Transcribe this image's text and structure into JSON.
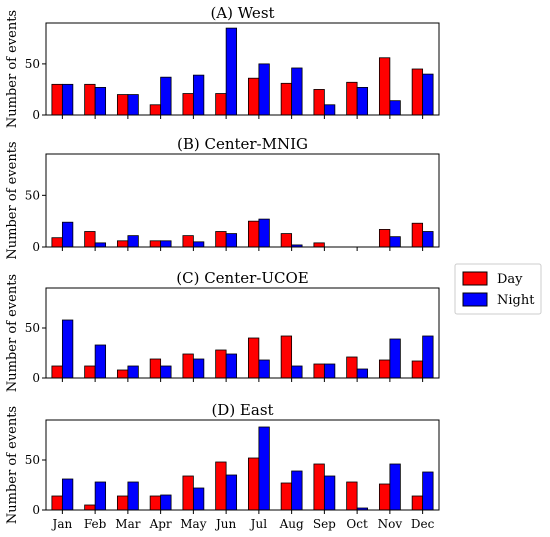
{
  "legend": {
    "entries": [
      {
        "label": "Day",
        "color": "#ff0000"
      },
      {
        "label": "Night",
        "color": "#0000ff"
      }
    ]
  },
  "chart_data": [
    {
      "type": "bar",
      "title": "(A) West",
      "ylabel": "Number of events",
      "ylim": [
        0,
        90
      ],
      "yticks": [
        0,
        50
      ],
      "categories": [
        "Jan",
        "Feb",
        "Mar",
        "Apr",
        "May",
        "Jun",
        "Jul",
        "Aug",
        "Sep",
        "Oct",
        "Nov",
        "Dec"
      ],
      "series": [
        {
          "name": "Day",
          "color": "#ff0000",
          "values": [
            30,
            30,
            20,
            10,
            21,
            21,
            36,
            31,
            25,
            32,
            56,
            45
          ]
        },
        {
          "name": "Night",
          "color": "#0000ff",
          "values": [
            30,
            27,
            20,
            37,
            39,
            85,
            50,
            46,
            10,
            27,
            14,
            40
          ]
        }
      ]
    },
    {
      "type": "bar",
      "title": "(B) Center-MNIG",
      "ylabel": "Number of events",
      "ylim": [
        0,
        90
      ],
      "yticks": [
        0,
        50
      ],
      "categories": [
        "Jan",
        "Feb",
        "Mar",
        "Apr",
        "May",
        "Jun",
        "Jul",
        "Aug",
        "Sep",
        "Oct",
        "Nov",
        "Dec"
      ],
      "series": [
        {
          "name": "Day",
          "color": "#ff0000",
          "values": [
            9,
            15,
            6,
            6,
            11,
            15,
            25,
            13,
            4,
            0,
            17,
            23
          ]
        },
        {
          "name": "Night",
          "color": "#0000ff",
          "values": [
            24,
            4,
            11,
            6,
            5,
            13,
            27,
            2,
            0,
            0,
            10,
            15
          ]
        }
      ]
    },
    {
      "type": "bar",
      "title": "(C) Center-UCOE",
      "ylabel": "Number of events",
      "ylim": [
        0,
        90
      ],
      "yticks": [
        0,
        50
      ],
      "categories": [
        "Jan",
        "Feb",
        "Mar",
        "Apr",
        "May",
        "Jun",
        "Jul",
        "Aug",
        "Sep",
        "Oct",
        "Nov",
        "Dec"
      ],
      "series": [
        {
          "name": "Day",
          "color": "#ff0000",
          "values": [
            12,
            12,
            8,
            19,
            24,
            28,
            40,
            42,
            14,
            21,
            18,
            17
          ]
        },
        {
          "name": "Night",
          "color": "#0000ff",
          "values": [
            58,
            33,
            12,
            12,
            19,
            24,
            18,
            12,
            14,
            9,
            39,
            42
          ]
        }
      ]
    },
    {
      "type": "bar",
      "title": "(D) East",
      "ylabel": "Number of events",
      "ylim": [
        0,
        90
      ],
      "yticks": [
        0,
        50
      ],
      "categories": [
        "Jan",
        "Feb",
        "Mar",
        "Apr",
        "May",
        "Jun",
        "Jul",
        "Aug",
        "Sep",
        "Oct",
        "Nov",
        "Dec"
      ],
      "series": [
        {
          "name": "Day",
          "color": "#ff0000",
          "values": [
            14,
            5,
            14,
            14,
            34,
            48,
            52,
            27,
            46,
            28,
            26,
            14
          ]
        },
        {
          "name": "Night",
          "color": "#0000ff",
          "values": [
            31,
            28,
            28,
            15,
            22,
            35,
            83,
            39,
            34,
            2,
            46,
            38
          ]
        }
      ]
    }
  ]
}
